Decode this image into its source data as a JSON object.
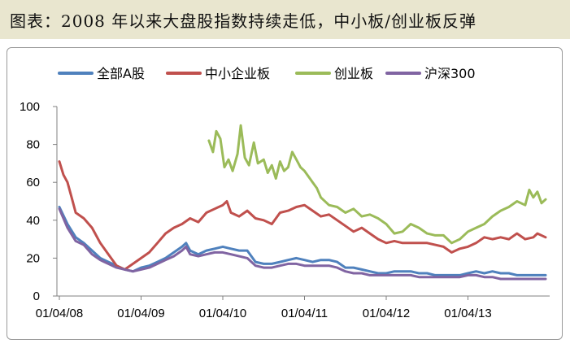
{
  "title": "图表：2008 年以来大盘股指数持续走低，中小板/创业板反弹",
  "chart_data": {
    "type": "line",
    "x_ticks": [
      "01/04/08",
      "01/04/09",
      "01/04/10",
      "01/04/11",
      "01/04/12",
      "01/04/13"
    ],
    "ylim": [
      0,
      100
    ],
    "y_ticks": [
      0,
      20,
      40,
      60,
      80,
      100
    ],
    "x_range": [
      2008.0,
      2013.95
    ],
    "legend_position": "top",
    "grid": false,
    "series": [
      {
        "name": "全部A股",
        "color": "#4f81bd",
        "points": [
          [
            2008.0,
            47
          ],
          [
            2008.1,
            38
          ],
          [
            2008.2,
            31
          ],
          [
            2008.3,
            28
          ],
          [
            2008.4,
            24
          ],
          [
            2008.5,
            20
          ],
          [
            2008.6,
            18
          ],
          [
            2008.7,
            16
          ],
          [
            2008.8,
            14
          ],
          [
            2008.9,
            13
          ],
          [
            2009.0,
            15
          ],
          [
            2009.1,
            16
          ],
          [
            2009.2,
            18
          ],
          [
            2009.3,
            20
          ],
          [
            2009.4,
            23
          ],
          [
            2009.5,
            26
          ],
          [
            2009.55,
            28
          ],
          [
            2009.6,
            24
          ],
          [
            2009.7,
            22
          ],
          [
            2009.8,
            24
          ],
          [
            2009.9,
            25
          ],
          [
            2010.0,
            26
          ],
          [
            2010.1,
            25
          ],
          [
            2010.2,
            24
          ],
          [
            2010.3,
            24
          ],
          [
            2010.4,
            18
          ],
          [
            2010.5,
            17
          ],
          [
            2010.6,
            17
          ],
          [
            2010.7,
            18
          ],
          [
            2010.8,
            19
          ],
          [
            2010.9,
            20
          ],
          [
            2011.0,
            19
          ],
          [
            2011.1,
            18
          ],
          [
            2011.2,
            19
          ],
          [
            2011.3,
            19
          ],
          [
            2011.4,
            18
          ],
          [
            2011.5,
            15
          ],
          [
            2011.6,
            15
          ],
          [
            2011.7,
            14
          ],
          [
            2011.8,
            13
          ],
          [
            2011.9,
            12
          ],
          [
            2012.0,
            12
          ],
          [
            2012.1,
            13
          ],
          [
            2012.2,
            13
          ],
          [
            2012.3,
            13
          ],
          [
            2012.4,
            12
          ],
          [
            2012.5,
            12
          ],
          [
            2012.6,
            11
          ],
          [
            2012.7,
            11
          ],
          [
            2012.8,
            11
          ],
          [
            2012.9,
            11
          ],
          [
            2013.0,
            12
          ],
          [
            2013.1,
            13
          ],
          [
            2013.2,
            12
          ],
          [
            2013.3,
            13
          ],
          [
            2013.4,
            12
          ],
          [
            2013.5,
            12
          ],
          [
            2013.6,
            11
          ],
          [
            2013.7,
            11
          ],
          [
            2013.8,
            11
          ],
          [
            2013.95,
            11
          ]
        ]
      },
      {
        "name": "中小企业板",
        "color": "#c0504d",
        "points": [
          [
            2008.0,
            71
          ],
          [
            2008.05,
            64
          ],
          [
            2008.1,
            60
          ],
          [
            2008.15,
            52
          ],
          [
            2008.2,
            44
          ],
          [
            2008.3,
            41
          ],
          [
            2008.4,
            36
          ],
          [
            2008.5,
            28
          ],
          [
            2008.6,
            22
          ],
          [
            2008.7,
            16
          ],
          [
            2008.8,
            14
          ],
          [
            2008.9,
            17
          ],
          [
            2009.0,
            20
          ],
          [
            2009.1,
            23
          ],
          [
            2009.2,
            28
          ],
          [
            2009.3,
            33
          ],
          [
            2009.4,
            36
          ],
          [
            2009.5,
            38
          ],
          [
            2009.6,
            41
          ],
          [
            2009.7,
            39
          ],
          [
            2009.8,
            44
          ],
          [
            2009.9,
            46
          ],
          [
            2010.0,
            48
          ],
          [
            2010.05,
            50
          ],
          [
            2010.1,
            44
          ],
          [
            2010.2,
            42
          ],
          [
            2010.3,
            45
          ],
          [
            2010.4,
            41
          ],
          [
            2010.5,
            40
          ],
          [
            2010.6,
            38
          ],
          [
            2010.7,
            44
          ],
          [
            2010.8,
            45
          ],
          [
            2010.9,
            47
          ],
          [
            2011.0,
            48
          ],
          [
            2011.1,
            45
          ],
          [
            2011.2,
            42
          ],
          [
            2011.3,
            43
          ],
          [
            2011.4,
            40
          ],
          [
            2011.5,
            37
          ],
          [
            2011.6,
            34
          ],
          [
            2011.7,
            36
          ],
          [
            2011.8,
            33
          ],
          [
            2011.9,
            30
          ],
          [
            2012.0,
            28
          ],
          [
            2012.1,
            29
          ],
          [
            2012.2,
            28
          ],
          [
            2012.3,
            28
          ],
          [
            2012.4,
            28
          ],
          [
            2012.5,
            28
          ],
          [
            2012.6,
            27
          ],
          [
            2012.7,
            26
          ],
          [
            2012.8,
            23
          ],
          [
            2012.9,
            25
          ],
          [
            2013.0,
            26
          ],
          [
            2013.1,
            28
          ],
          [
            2013.2,
            31
          ],
          [
            2013.3,
            30
          ],
          [
            2013.4,
            31
          ],
          [
            2013.5,
            30
          ],
          [
            2013.6,
            33
          ],
          [
            2013.7,
            30
          ],
          [
            2013.8,
            31
          ],
          [
            2013.85,
            33
          ],
          [
            2013.95,
            31
          ]
        ]
      },
      {
        "name": "创业板",
        "color": "#9bbb59",
        "points": [
          [
            2009.83,
            82
          ],
          [
            2009.88,
            76
          ],
          [
            2009.92,
            87
          ],
          [
            2009.97,
            83
          ],
          [
            2010.02,
            68
          ],
          [
            2010.07,
            72
          ],
          [
            2010.12,
            66
          ],
          [
            2010.18,
            75
          ],
          [
            2010.22,
            90
          ],
          [
            2010.27,
            73
          ],
          [
            2010.32,
            69
          ],
          [
            2010.38,
            81
          ],
          [
            2010.43,
            70
          ],
          [
            2010.5,
            72
          ],
          [
            2010.55,
            65
          ],
          [
            2010.6,
            69
          ],
          [
            2010.65,
            62
          ],
          [
            2010.7,
            71
          ],
          [
            2010.75,
            66
          ],
          [
            2010.8,
            68
          ],
          [
            2010.85,
            76
          ],
          [
            2010.9,
            72
          ],
          [
            2010.95,
            68
          ],
          [
            2011.0,
            66
          ],
          [
            2011.05,
            63
          ],
          [
            2011.1,
            60
          ],
          [
            2011.15,
            57
          ],
          [
            2011.2,
            52
          ],
          [
            2011.3,
            48
          ],
          [
            2011.4,
            47
          ],
          [
            2011.5,
            44
          ],
          [
            2011.6,
            46
          ],
          [
            2011.7,
            42
          ],
          [
            2011.8,
            43
          ],
          [
            2011.9,
            41
          ],
          [
            2012.0,
            38
          ],
          [
            2012.1,
            33
          ],
          [
            2012.2,
            34
          ],
          [
            2012.3,
            38
          ],
          [
            2012.4,
            36
          ],
          [
            2012.5,
            33
          ],
          [
            2012.6,
            32
          ],
          [
            2012.7,
            32
          ],
          [
            2012.8,
            28
          ],
          [
            2012.9,
            30
          ],
          [
            2013.0,
            34
          ],
          [
            2013.1,
            36
          ],
          [
            2013.2,
            38
          ],
          [
            2013.3,
            42
          ],
          [
            2013.4,
            45
          ],
          [
            2013.5,
            47
          ],
          [
            2013.6,
            50
          ],
          [
            2013.7,
            48
          ],
          [
            2013.75,
            56
          ],
          [
            2013.8,
            52
          ],
          [
            2013.85,
            55
          ],
          [
            2013.9,
            49
          ],
          [
            2013.95,
            51
          ]
        ]
      },
      {
        "name": "沪深300",
        "color": "#8064a2",
        "points": [
          [
            2008.0,
            46
          ],
          [
            2008.1,
            36
          ],
          [
            2008.2,
            29
          ],
          [
            2008.3,
            27
          ],
          [
            2008.4,
            22
          ],
          [
            2008.5,
            19
          ],
          [
            2008.6,
            17
          ],
          [
            2008.7,
            15
          ],
          [
            2008.8,
            14
          ],
          [
            2008.9,
            13
          ],
          [
            2009.0,
            14
          ],
          [
            2009.1,
            15
          ],
          [
            2009.2,
            17
          ],
          [
            2009.3,
            19
          ],
          [
            2009.4,
            21
          ],
          [
            2009.5,
            24
          ],
          [
            2009.55,
            26
          ],
          [
            2009.6,
            22
          ],
          [
            2009.7,
            21
          ],
          [
            2009.8,
            22
          ],
          [
            2009.9,
            23
          ],
          [
            2010.0,
            23
          ],
          [
            2010.1,
            22
          ],
          [
            2010.2,
            21
          ],
          [
            2010.3,
            20
          ],
          [
            2010.4,
            16
          ],
          [
            2010.5,
            15
          ],
          [
            2010.6,
            15
          ],
          [
            2010.7,
            16
          ],
          [
            2010.8,
            17
          ],
          [
            2010.9,
            17
          ],
          [
            2011.0,
            16
          ],
          [
            2011.1,
            16
          ],
          [
            2011.2,
            16
          ],
          [
            2011.3,
            16
          ],
          [
            2011.4,
            15
          ],
          [
            2011.5,
            13
          ],
          [
            2011.6,
            12
          ],
          [
            2011.7,
            12
          ],
          [
            2011.8,
            11
          ],
          [
            2011.9,
            11
          ],
          [
            2012.0,
            11
          ],
          [
            2012.1,
            11
          ],
          [
            2012.2,
            11
          ],
          [
            2012.3,
            11
          ],
          [
            2012.4,
            10
          ],
          [
            2012.5,
            10
          ],
          [
            2012.6,
            10
          ],
          [
            2012.7,
            10
          ],
          [
            2012.8,
            10
          ],
          [
            2012.9,
            10
          ],
          [
            2013.0,
            11
          ],
          [
            2013.1,
            11
          ],
          [
            2013.2,
            10
          ],
          [
            2013.3,
            10
          ],
          [
            2013.4,
            9
          ],
          [
            2013.5,
            9
          ],
          [
            2013.6,
            9
          ],
          [
            2013.7,
            9
          ],
          [
            2013.8,
            9
          ],
          [
            2013.95,
            9
          ]
        ]
      }
    ]
  }
}
